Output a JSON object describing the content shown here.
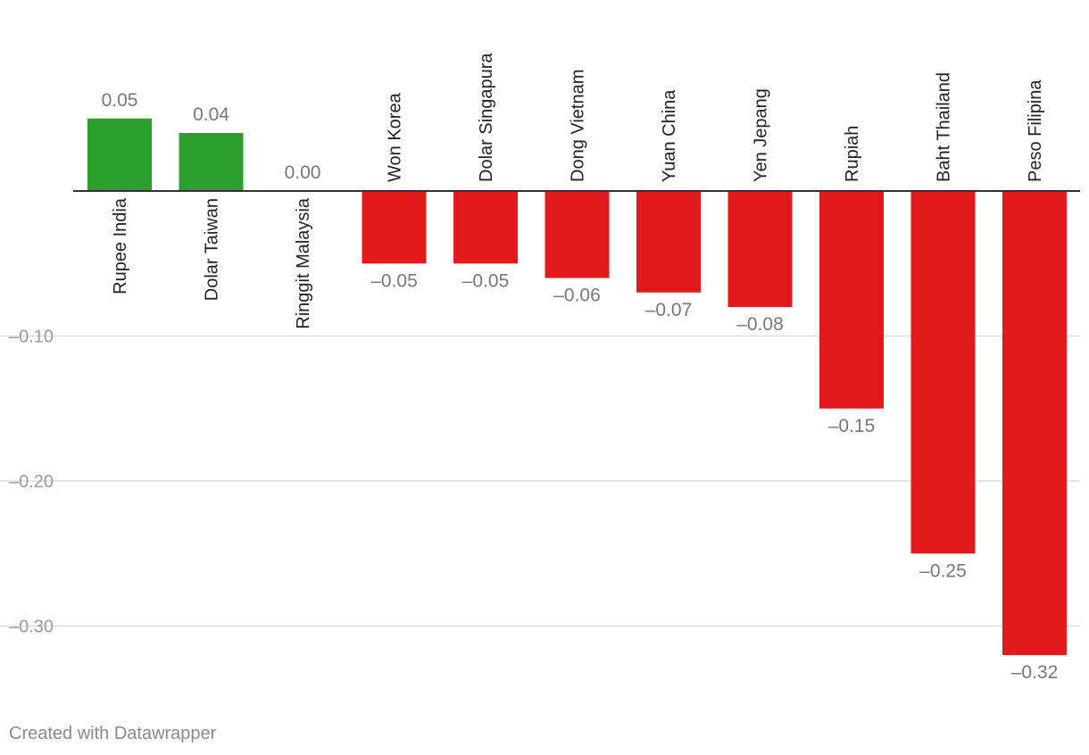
{
  "chart_data": {
    "type": "bar",
    "categories": [
      "Rupee India",
      "Dolar Taiwan",
      "Ringgit Malaysia",
      "Won Korea",
      "Dolar Singapura",
      "Dong Vietnam",
      "Yuan China",
      "Yen Jepang",
      "Rupiah",
      "Baht Thailand",
      "Peso Filipina"
    ],
    "values": [
      0.05,
      0.04,
      0.0,
      -0.05,
      -0.05,
      -0.06,
      -0.07,
      -0.08,
      -0.15,
      -0.25,
      -0.32
    ],
    "value_labels": [
      "0.05",
      "0.04",
      "0.00",
      "–0.05",
      "–0.05",
      "–0.06",
      "–0.07",
      "–0.08",
      "–0.15",
      "–0.25",
      "–0.32"
    ],
    "y_ticks": [
      -0.1,
      -0.2,
      -0.3
    ],
    "y_tick_labels": [
      "–0.10",
      "–0.20",
      "–0.30"
    ],
    "ylim": [
      -0.33,
      0.1
    ],
    "grid": true,
    "colors": {
      "positive": "#2ca02c",
      "negative": "#e31a1c",
      "value_label": "#777777",
      "category_label": "#222222",
      "tick_label": "#9a9a9a",
      "gridline": "#dddddd",
      "baseline": "#333333"
    }
  },
  "footer": {
    "credit": "Created with Datawrapper"
  }
}
